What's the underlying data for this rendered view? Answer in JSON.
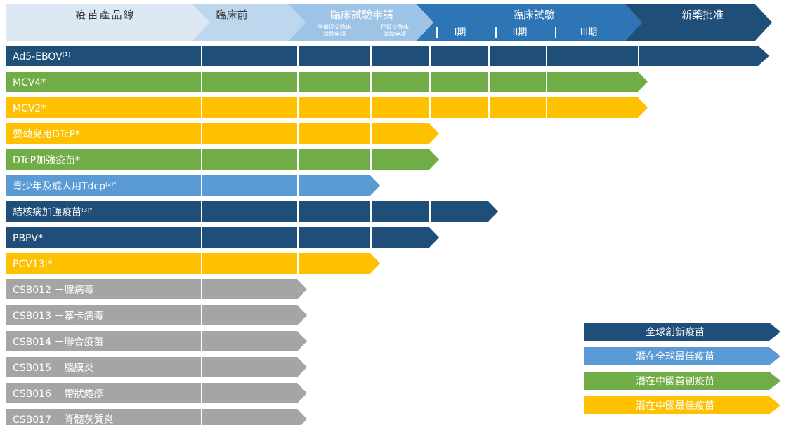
{
  "chart_data": {
    "type": "bar",
    "header": {
      "product_line": "疫苗產品線",
      "preclinical": "臨床前",
      "ind": "臨床試驗申請",
      "ind_sub1": "準備提交臨床試驗申請",
      "ind_sub2": "已提交臨床試驗申請",
      "clinical": "臨床試驗",
      "phase1": "I期",
      "phase2": "II期",
      "phase3": "III期",
      "approval": "新藥批准"
    },
    "stages": [
      "臨床前",
      "準備提交臨床試驗申請",
      "已提交臨床試驗申請",
      "I期",
      "II期",
      "III期",
      "新藥批准"
    ],
    "rows": [
      {
        "name": "Ad5-EBOV",
        "sup": "(1)",
        "category": "全球創新疫苗",
        "progress": 7
      },
      {
        "name": "MCV4*",
        "sup": "",
        "category": "潛在中國首創疫苗",
        "progress": 6
      },
      {
        "name": "MCV2*",
        "sup": "",
        "category": "潛在中國最佳疫苗",
        "progress": 6
      },
      {
        "name": "嬰幼兒用DTcP*",
        "sup": "",
        "category": "潛在中國最佳疫苗",
        "progress": 3
      },
      {
        "name": "DTcP加強疫苗*",
        "sup": "",
        "category": "潛在中國首創疫苗",
        "progress": 3
      },
      {
        "name": "青少年及成人用Tdcp",
        "sup": "(2)*",
        "category": "潛在全球最佳疫苗",
        "progress": 2
      },
      {
        "name": "結核病加強疫苗",
        "sup": "(3)*",
        "category": "全球創新疫苗",
        "progress": 4
      },
      {
        "name": "PBPV*",
        "sup": "",
        "category": "全球創新疫苗",
        "progress": 3
      },
      {
        "name": "PCV13i*",
        "sup": "",
        "category": "潛在中國最佳疫苗",
        "progress": 2
      },
      {
        "name": "CSB012 －腺病毒",
        "sup": "",
        "category": "",
        "progress": 1
      },
      {
        "name": "CSB013 －寨卡病毒",
        "sup": "",
        "category": "",
        "progress": 1
      },
      {
        "name": "CSB014 －聯合疫苗",
        "sup": "",
        "category": "",
        "progress": 1
      },
      {
        "name": "CSB015 －腦膜炎",
        "sup": "",
        "category": "",
        "progress": 1
      },
      {
        "name": "CSB016 －帶狀皰疹",
        "sup": "",
        "category": "",
        "progress": 1
      },
      {
        "name": "CSB017 －脊髓灰質炎",
        "sup": "",
        "category": "",
        "progress": 1
      }
    ],
    "legend": [
      {
        "label": "全球創新疫苗",
        "color": "#1f4e79"
      },
      {
        "label": "潛在全球最佳疫苗",
        "color": "#5b9bd5"
      },
      {
        "label": "潛在中國首創疫苗",
        "color": "#70ad47"
      },
      {
        "label": "潛在中國最佳疫苗",
        "color": "#ffc000"
      }
    ],
    "uncategorized_color": "#a5a5a5"
  }
}
